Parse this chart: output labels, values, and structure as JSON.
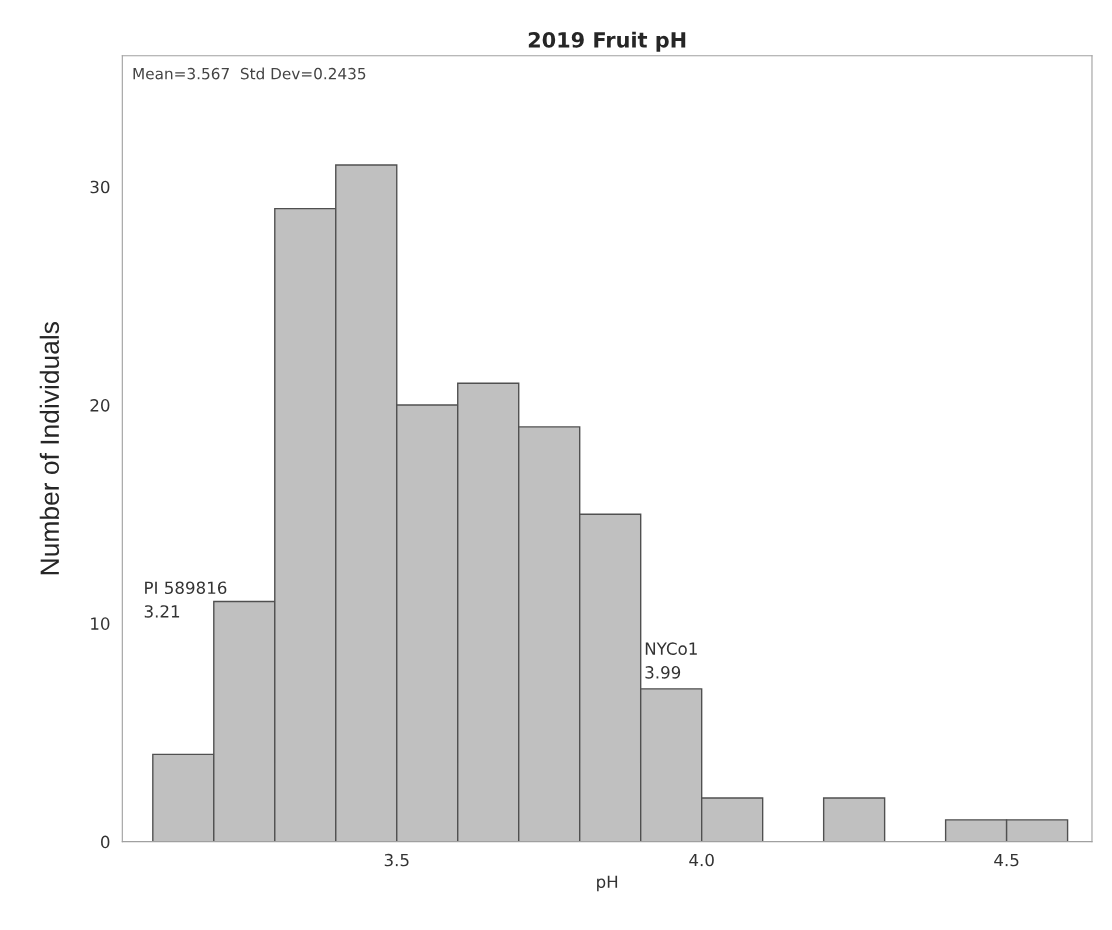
{
  "chart_data": {
    "type": "histogram",
    "title": "2019 Fruit pH",
    "xlabel": "pH",
    "ylabel": "Number of Individuals",
    "bins": [
      3.1,
      3.2,
      3.3,
      3.4,
      3.5,
      3.6,
      3.7,
      3.8,
      3.9,
      4.0,
      4.1,
      4.2,
      4.3,
      4.4,
      4.5,
      4.6
    ],
    "values": [
      4,
      11,
      29,
      31,
      20,
      21,
      19,
      15,
      7,
      2,
      0,
      2,
      0,
      1,
      1
    ],
    "color": "#c0c0c0",
    "xlim": [
      3.05,
      4.64
    ],
    "xticks": [
      {
        "value": 3.5,
        "label": "3.5"
      },
      {
        "value": 4.0,
        "label": "4.0"
      },
      {
        "value": 4.5,
        "label": "4.5"
      }
    ],
    "ylim": [
      0,
      36
    ],
    "yticks": [
      0,
      10,
      20,
      30
    ],
    "grid": false,
    "legend": false,
    "annotations": [
      "Mean=3.567  Std Dev=0.2435",
      {
        "text": "PI 589816\n3.21",
        "x": 3.21,
        "y": 11
      },
      {
        "text": "NYCo1\n3.99",
        "x": 3.99,
        "y": 7
      }
    ]
  }
}
